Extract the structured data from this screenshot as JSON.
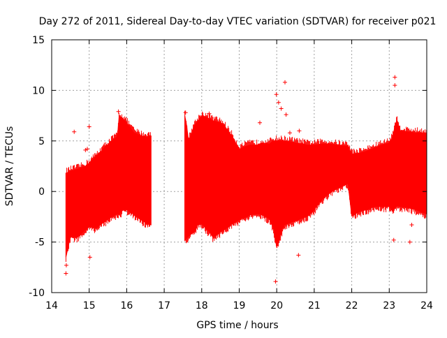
{
  "chart_data": {
    "type": "scatter",
    "title": "Day 272 of 2011, Sidereal Day-to-day VTEC variation (SDTVAR) for receiver p021",
    "xlabel": "GPS time / hours",
    "ylabel": "SDTVAR / TECUs",
    "xlim": [
      14,
      24
    ],
    "ylim": [
      -10,
      15
    ],
    "x_ticks": [
      "14",
      "15",
      "16",
      "17",
      "18",
      "19",
      "20",
      "21",
      "22",
      "23",
      "24"
    ],
    "y_ticks": [
      "-10",
      "-5",
      "0",
      "5",
      "10",
      "15"
    ],
    "grid": true,
    "marker": "+",
    "series": [
      {
        "name": "SDTVAR",
        "color": "#ff0000",
        "envelope_hours": [
          14.38,
          14.5,
          14.7,
          14.9,
          15.0,
          15.2,
          15.4,
          15.6,
          15.75,
          15.8,
          15.9,
          16.0,
          16.2,
          16.4,
          16.5,
          16.65,
          17.55,
          17.6,
          17.65,
          17.8,
          17.9,
          18.0,
          18.2,
          18.3,
          18.4,
          18.5,
          18.6,
          18.8,
          19.0,
          19.2,
          19.3,
          19.5,
          19.6,
          19.8,
          19.9,
          20.0,
          20.2,
          20.4,
          20.5,
          20.7,
          20.8,
          21.0,
          21.2,
          21.4,
          21.6,
          21.8,
          21.9,
          22.0,
          22.2,
          22.4,
          22.6,
          22.8,
          23.0,
          23.1,
          23.15,
          23.2,
          23.3,
          23.5,
          23.7,
          23.9,
          24.0
        ],
        "envelope_upper": [
          1.8,
          2.0,
          2.2,
          2.5,
          2.8,
          3.5,
          4.3,
          5.0,
          5.4,
          7.5,
          7.2,
          6.8,
          5.8,
          5.5,
          5.4,
          5.5,
          7.5,
          6.5,
          5.0,
          6.5,
          7.0,
          7.5,
          7.2,
          7.0,
          6.9,
          6.8,
          6.5,
          5.5,
          4.2,
          4.5,
          4.6,
          4.6,
          4.8,
          4.7,
          5.0,
          5.0,
          5.0,
          4.9,
          4.8,
          4.7,
          4.6,
          4.6,
          4.7,
          4.7,
          4.6,
          4.5,
          4.5,
          3.7,
          3.8,
          4.0,
          4.3,
          4.6,
          4.8,
          5.5,
          6.5,
          7.0,
          6.0,
          5.9,
          5.8,
          5.8,
          5.8
        ],
        "envelope_lower": [
          -6.5,
          -4.5,
          -4.5,
          -3.8,
          -3.5,
          -3.6,
          -3.0,
          -2.5,
          -2.2,
          -2.3,
          -1.8,
          -1.8,
          -2.3,
          -2.8,
          -3.1,
          -3.3,
          -4.8,
          -4.6,
          -4.4,
          -4.0,
          -3.3,
          -3.2,
          -4.0,
          -4.5,
          -4.3,
          -4.0,
          -3.8,
          -3.2,
          -2.8,
          -2.5,
          -2.3,
          -2.2,
          -2.3,
          -2.7,
          -3.5,
          -5.5,
          -3.3,
          -3.0,
          -2.9,
          -2.6,
          -2.5,
          -1.8,
          -0.8,
          -0.2,
          0.3,
          0.6,
          0.8,
          -2.4,
          -2.0,
          -1.8,
          -1.5,
          -1.5,
          -1.5,
          -2.0,
          -1.6,
          -1.4,
          -1.5,
          -1.6,
          -1.8,
          -2.1,
          -2.2
        ],
        "outliers_x": [
          14.38,
          14.39,
          14.6,
          14.9,
          14.95,
          15.0,
          15.02,
          15.78,
          17.57,
          18.2,
          19.55,
          19.97,
          19.99,
          20.05,
          20.12,
          20.22,
          20.25,
          20.35,
          20.58,
          20.6,
          23.12,
          23.15,
          23.15,
          23.55,
          23.6
        ],
        "outliers_y": [
          -8.1,
          -7.3,
          5.9,
          4.1,
          4.2,
          6.4,
          -6.5,
          7.9,
          7.8,
          7.7,
          6.8,
          -8.9,
          9.6,
          8.8,
          8.2,
          10.8,
          7.6,
          5.8,
          -6.3,
          6.0,
          -4.8,
          11.3,
          10.5,
          -5.0,
          -3.3
        ]
      }
    ]
  }
}
